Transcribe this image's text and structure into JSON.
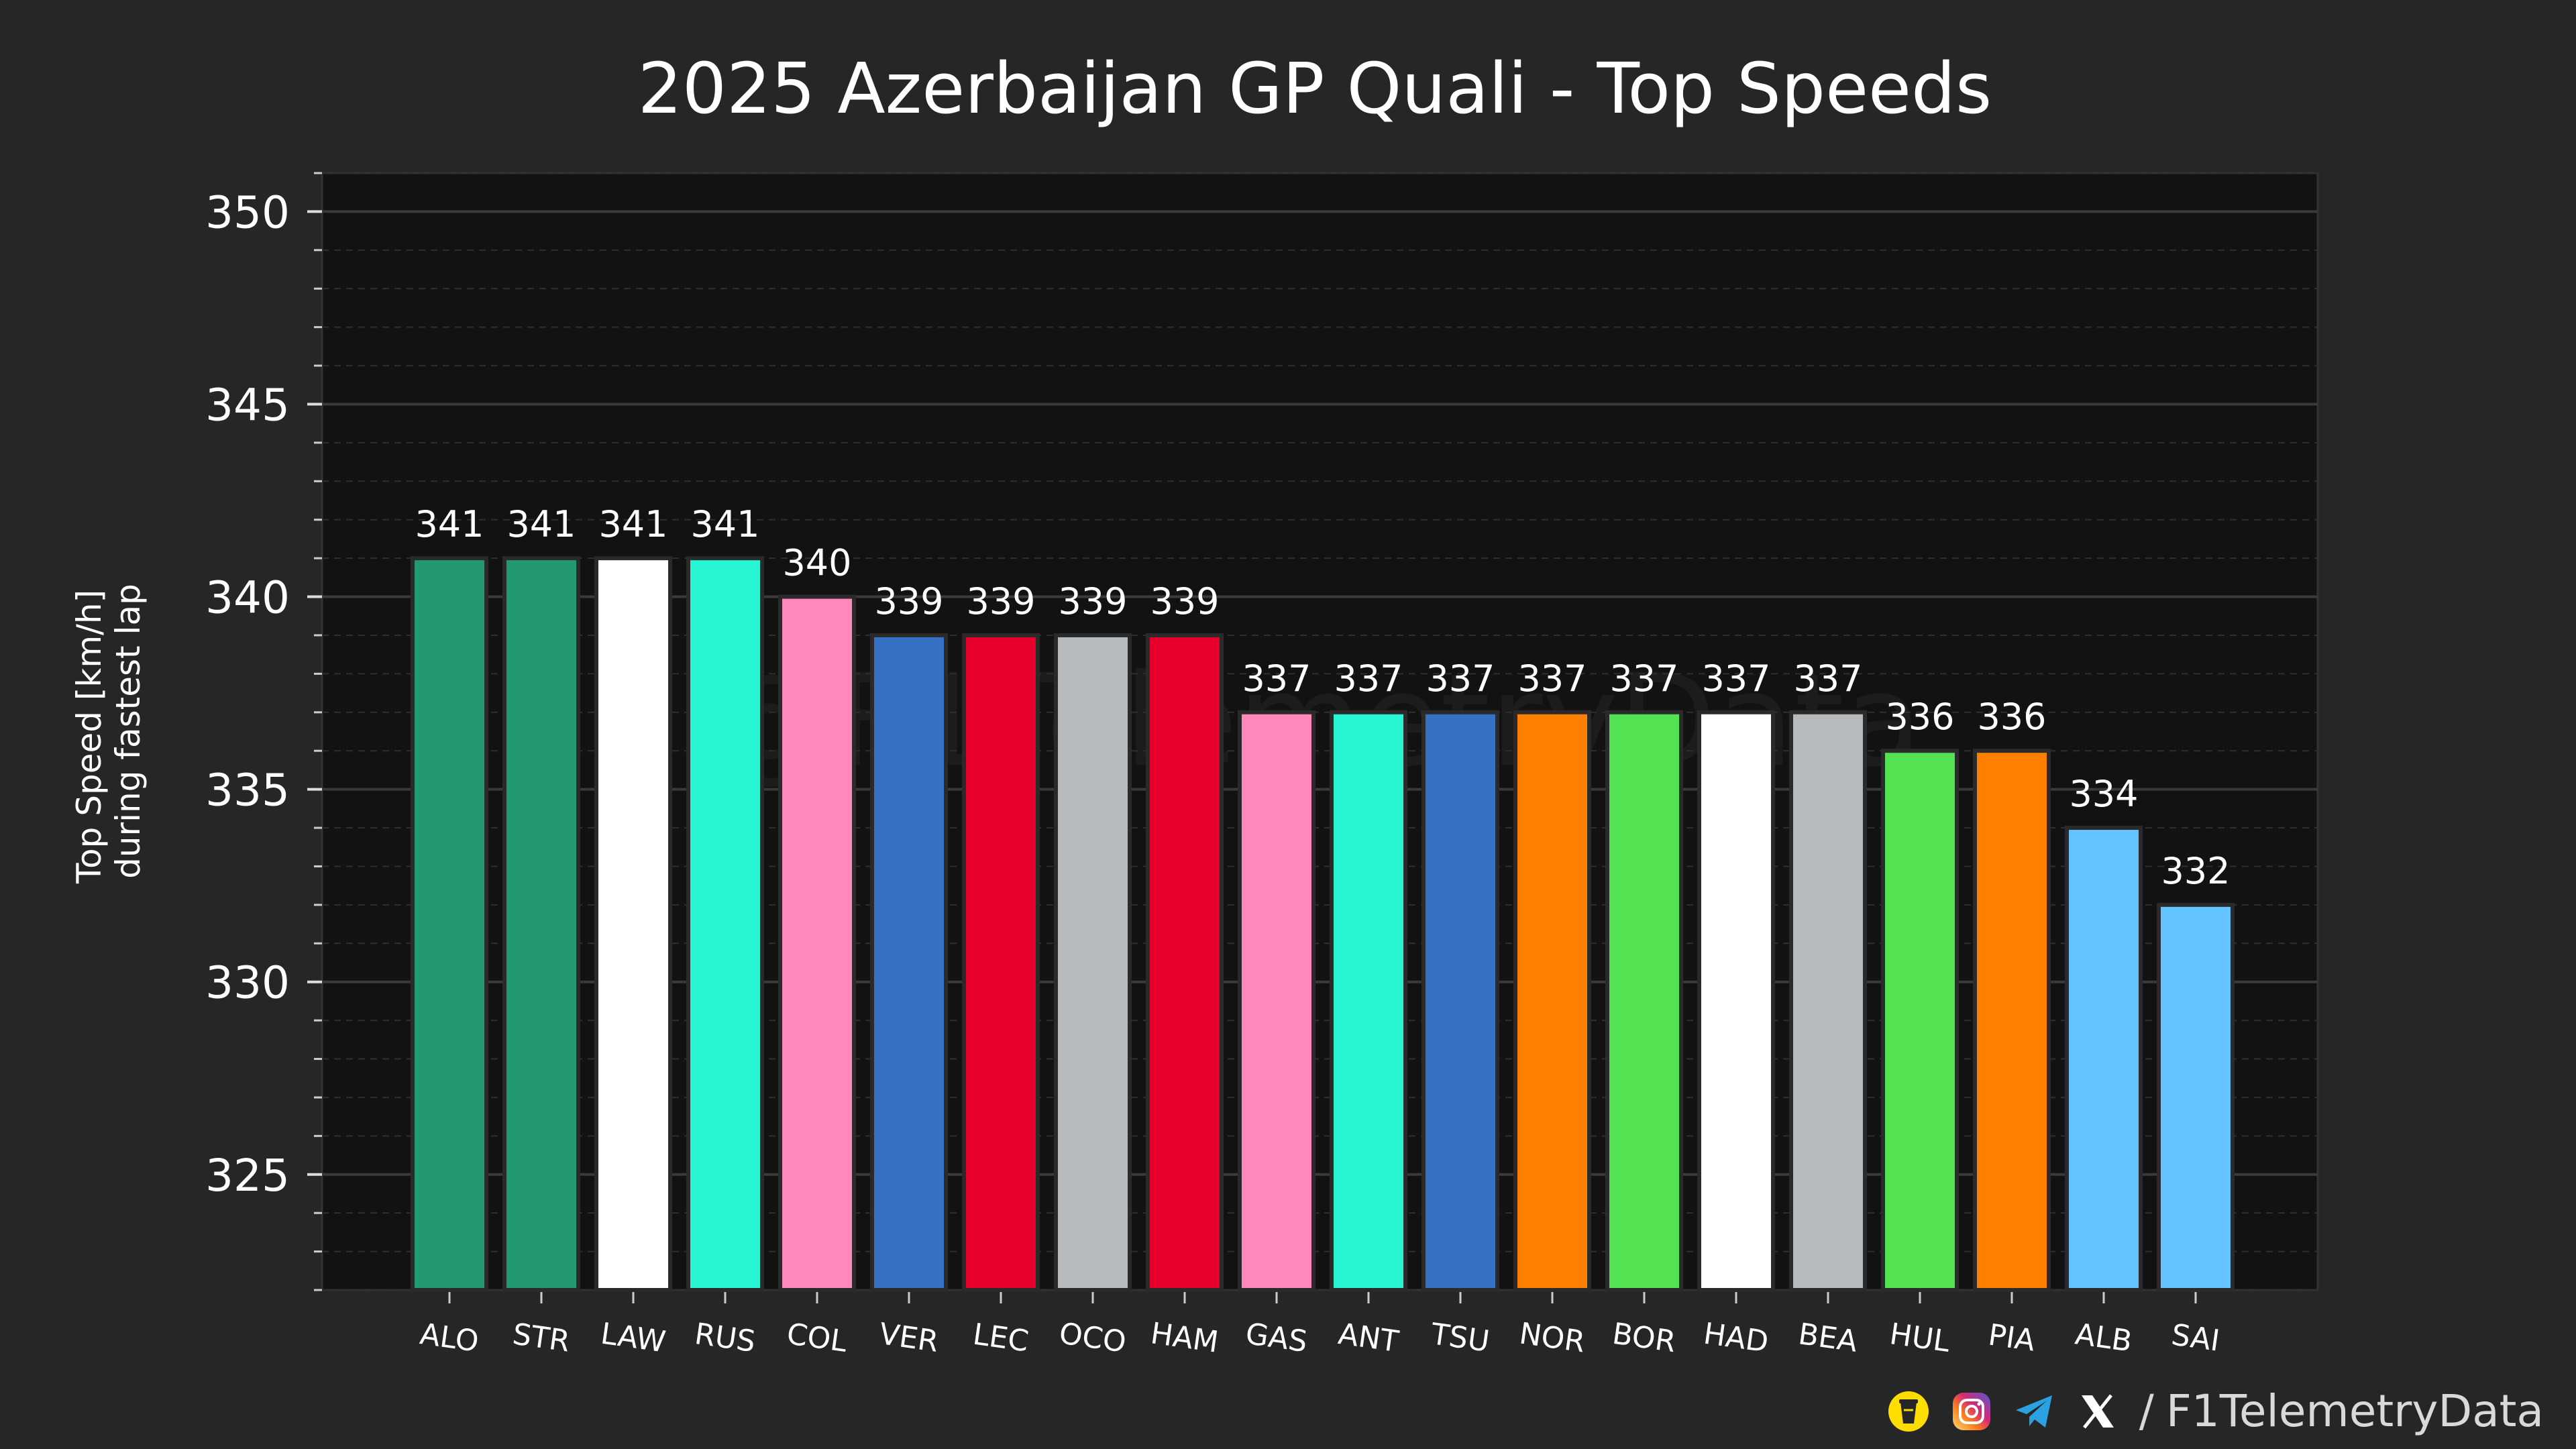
{
  "chart_data": {
    "type": "bar",
    "title": "2025 Azerbaijan GP Quali - Top Speeds",
    "xlabel": "",
    "ylabel": [
      "Top Speed [km/h]",
      "during fastest lap"
    ],
    "ylim": [
      322,
      351
    ],
    "yticks": [
      325,
      330,
      335,
      340,
      345,
      350
    ],
    "grid": true,
    "categories": [
      "ALO",
      "STR",
      "LAW",
      "RUS",
      "COL",
      "VER",
      "LEC",
      "OCO",
      "HAM",
      "GAS",
      "ANT",
      "TSU",
      "NOR",
      "BOR",
      "HAD",
      "BEA",
      "HUL",
      "PIA",
      "ALB",
      "SAI"
    ],
    "values": [
      341,
      341,
      341,
      341,
      340,
      339,
      339,
      339,
      339,
      337,
      337,
      337,
      337,
      337,
      337,
      337,
      336,
      336,
      334,
      332
    ],
    "colors": [
      "#229971",
      "#229971",
      "#ffffff",
      "#27f4d2",
      "#ff87bc",
      "#3671c6",
      "#e8002d",
      "#b6babd",
      "#e8002d",
      "#ff87bc",
      "#27f4d2",
      "#3671c6",
      "#ff8000",
      "#52e252",
      "#ffffff",
      "#b6babd",
      "#52e252",
      "#ff8000",
      "#64c4ff",
      "#64c4ff"
    ],
    "watermark": "@F1TelemetryData"
  },
  "footer": {
    "icons": [
      "coffee-icon",
      "instagram-icon",
      "telegram-icon",
      "x-icon"
    ],
    "separator": "/",
    "handle": "F1TelemetryData"
  }
}
